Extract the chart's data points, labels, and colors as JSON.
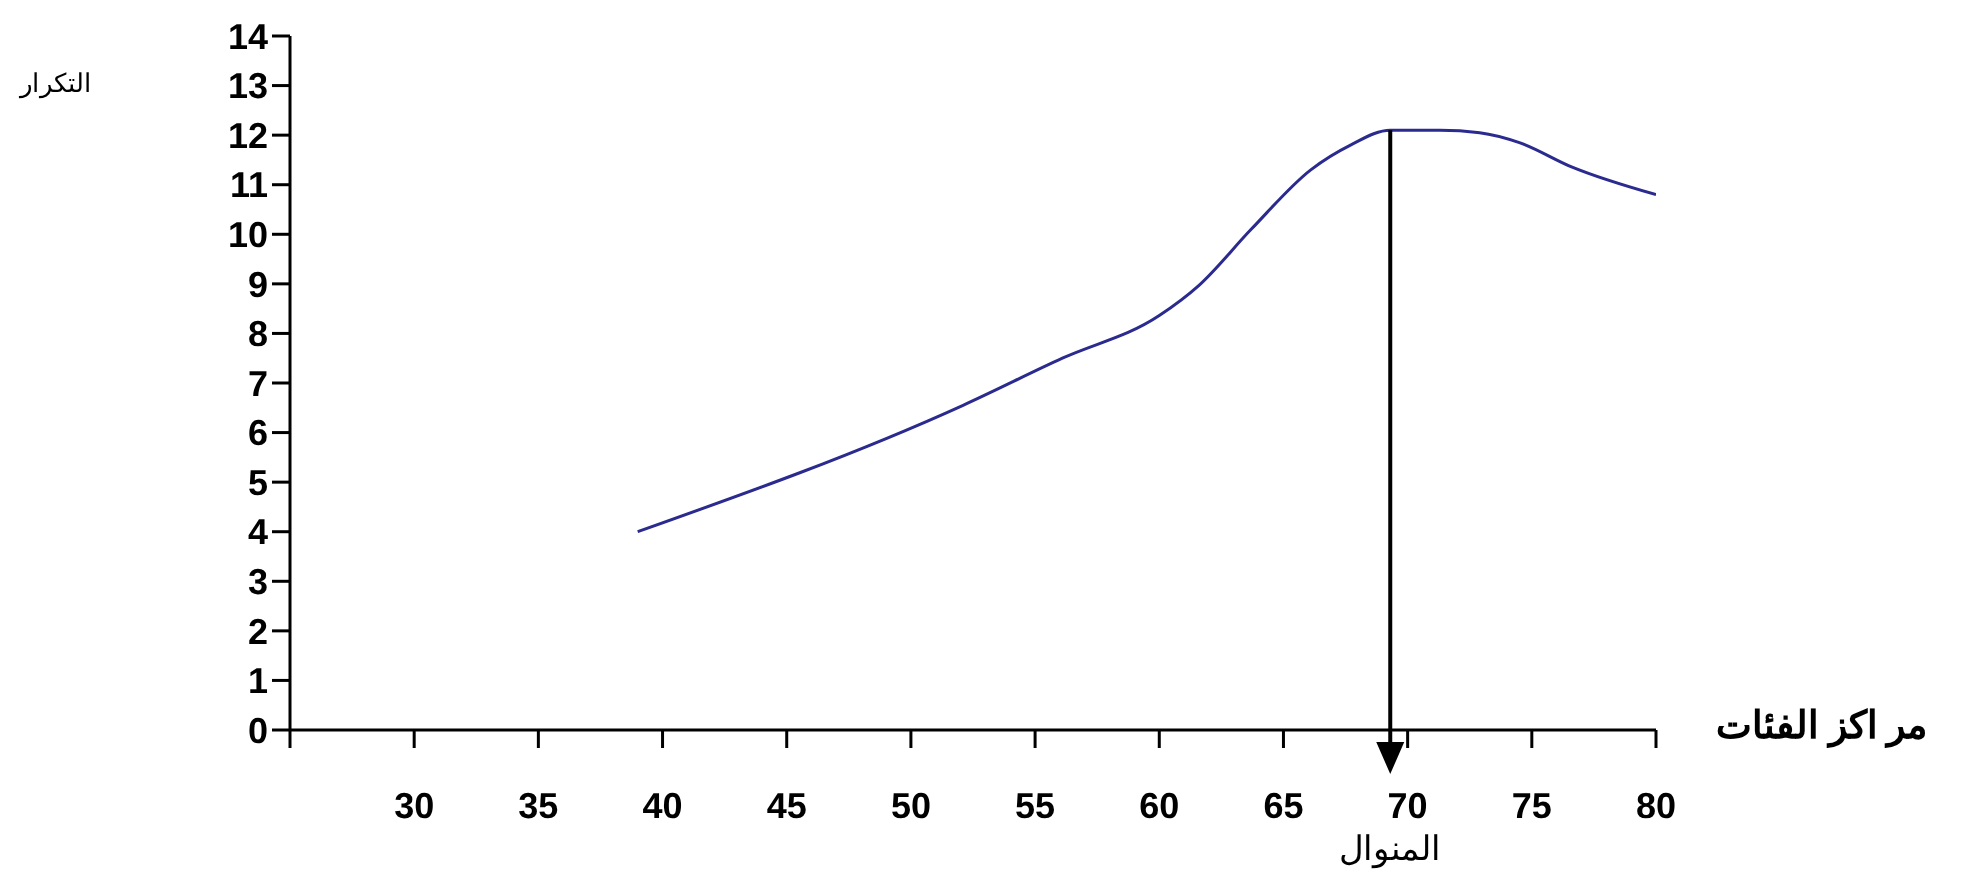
{
  "chart_data": {
    "type": "line",
    "xlabel": "مر اكز الفئات",
    "x": [
      39,
      52.1,
      56.1,
      60,
      61.6,
      63.7,
      66.1,
      67.7,
      69.3,
      71.3,
      72.9,
      74.5,
      76.6,
      80
    ],
    "series": [
      {
        "color": "#2b2b8f",
        "values": [
          4,
          6.55,
          7.5,
          8.36,
          8.97,
          10.1,
          11.3,
          11.8,
          12.1,
          12.1,
          12.05,
          11.85,
          11.36,
          10.8
        ]
      }
    ],
    "xlim": [
      25,
      80
    ],
    "xticks": [
      {
        "value": 25,
        "label": null
      },
      30,
      35,
      40,
      45,
      50,
      55,
      60,
      65,
      70,
      75,
      80
    ],
    "ylim": [
      0,
      14
    ],
    "yticks": [
      0,
      1,
      2,
      3,
      4,
      5,
      6,
      7,
      8,
      9,
      10,
      11,
      12,
      13,
      14
    ],
    "ref_lines": [
      {
        "axis": "x",
        "value": 69.3,
        "label": "المنوال",
        "color": "#000000"
      }
    ],
    "annotations": [
      "التكرار"
    ],
    "grid": false,
    "legend": false
  }
}
